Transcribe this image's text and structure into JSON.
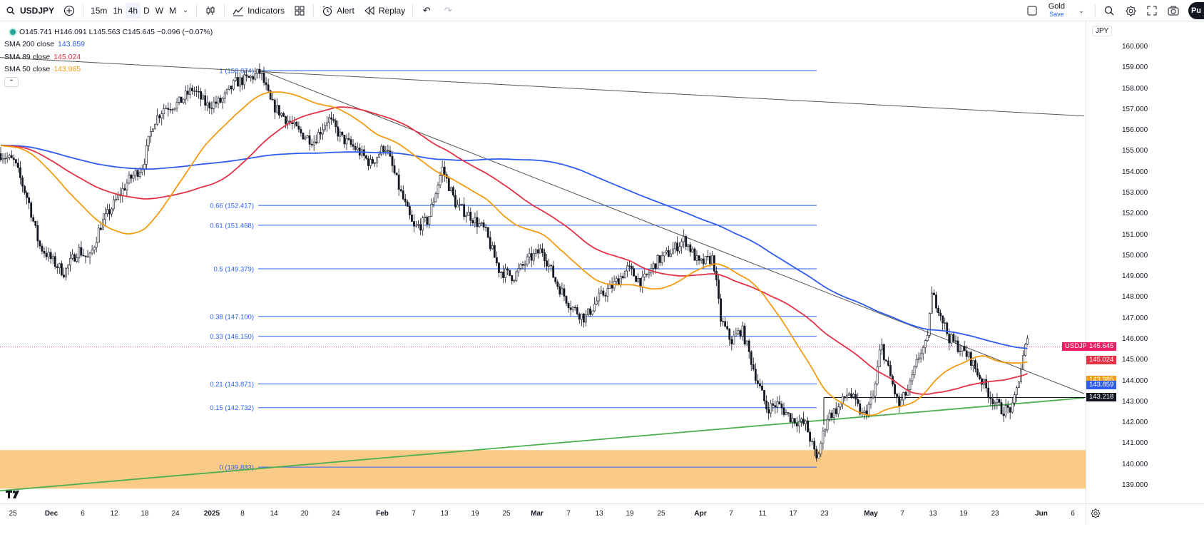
{
  "toolbar": {
    "symbol": "USDJPY",
    "timeframes": [
      "15m",
      "1h",
      "4h",
      "D",
      "W",
      "M"
    ],
    "active_timeframe": "4h",
    "indicators_label": "Indicators",
    "alert_label": "Alert",
    "replay_label": "Replay",
    "gold_label": "Gold",
    "gold_save": "Save",
    "publish_label": "Pu"
  },
  "legend": {
    "ohlc": {
      "open": "O145.741",
      "high": "H146.091",
      "low": "L145.563",
      "close": "C145.645",
      "change": "−0.096 (−0.07%)"
    },
    "sma200_label": "SMA 200 close",
    "sma200_value": "143.859",
    "sma89_label": "SMA 89 close",
    "sma89_value": "145.024",
    "sma50_label": "SMA 50 close",
    "sma50_value": "143.985"
  },
  "colors": {
    "sma200": "#2f5cf0",
    "sma89": "#e53146",
    "sma50": "#f39c12",
    "fib": "#2962ff",
    "support_zone": "#f9c57a",
    "uptrend": "#4caf50",
    "up_candle": "#131722",
    "down_candle": "#131722"
  },
  "price_axis": {
    "unit": "JPY",
    "ticks": [
      "160.000",
      "159.000",
      "158.000",
      "157.000",
      "156.000",
      "155.000",
      "154.000",
      "153.000",
      "152.000",
      "151.000",
      "150.000",
      "149.000",
      "148.000",
      "147.000",
      "146.000",
      "145.000",
      "144.000",
      "143.000",
      "142.000",
      "141.000",
      "140.000",
      "139.000"
    ],
    "tags": [
      {
        "label": "USDJPY",
        "value": "145.645",
        "color": "#e91e63"
      },
      {
        "value": "145.024",
        "color": "#e53146"
      },
      {
        "value": "143.985",
        "color": "#f39c12"
      },
      {
        "value": "143.859",
        "color": "#2f5cf0"
      },
      {
        "value": "143.218",
        "color": "#131722"
      }
    ]
  },
  "time_axis": {
    "ticks": [
      "25",
      "Dec",
      "6",
      "12",
      "18",
      "24",
      "2025",
      "8",
      "14",
      "20",
      "24",
      "Feb",
      "7",
      "13",
      "19",
      "25",
      "Mar",
      "7",
      "13",
      "19",
      "25",
      "Apr",
      "7",
      "11",
      "17",
      "23",
      "May",
      "7",
      "13",
      "19",
      "23",
      "Jun",
      "6"
    ]
  },
  "fib_levels": [
    {
      "label": "1 (158.874)",
      "price": 158.874
    },
    {
      "label": "0.66 (152.417)",
      "price": 152.417
    },
    {
      "label": "0.61 (151.468)",
      "price": 151.468
    },
    {
      "label": "0.5 (149.379)",
      "price": 149.379
    },
    {
      "label": "0.38 (147.100)",
      "price": 147.1
    },
    {
      "label": "0.33 (146.150)",
      "price": 146.15
    },
    {
      "label": "0.21 (143.871)",
      "price": 143.871
    },
    {
      "label": "0.15 (142.732)",
      "price": 142.732
    },
    {
      "label": "0 (139.883)",
      "price": 139.883
    }
  ],
  "chart_data": {
    "type": "candlestick",
    "symbol": "USDJPY",
    "ylim": [
      138.75,
      160.35
    ],
    "support_zone": [
      138.85,
      140.7
    ],
    "last_price": 145.645,
    "close_path": [
      [
        0,
        154.9
      ],
      [
        20,
        154.5
      ],
      [
        40,
        152.6
      ],
      [
        55,
        150.5
      ],
      [
        75,
        149.7
      ],
      [
        90,
        149.2
      ],
      [
        110,
        150.3
      ],
      [
        125,
        149.8
      ],
      [
        140,
        151.4
      ],
      [
        160,
        152.5
      ],
      [
        180,
        153.6
      ],
      [
        200,
        154.3
      ],
      [
        215,
        156.4
      ],
      [
        230,
        157.1
      ],
      [
        250,
        157.3
      ],
      [
        270,
        158.0
      ],
      [
        290,
        157.2
      ],
      [
        310,
        157.4
      ],
      [
        330,
        158.3
      ],
      [
        350,
        158.5
      ],
      [
        365,
        158.8
      ],
      [
        380,
        157.3
      ],
      [
        400,
        156.6
      ],
      [
        420,
        155.9
      ],
      [
        440,
        155.5
      ],
      [
        460,
        156.6
      ],
      [
        480,
        155.6
      ],
      [
        500,
        155.1
      ],
      [
        520,
        154.4
      ],
      [
        540,
        155.3
      ],
      [
        560,
        153.2
      ],
      [
        580,
        151.3
      ],
      [
        600,
        151.7
      ],
      [
        620,
        154.2
      ],
      [
        640,
        152.4
      ],
      [
        660,
        151.9
      ],
      [
        680,
        151.2
      ],
      [
        700,
        149.3
      ],
      [
        720,
        149.0
      ],
      [
        740,
        149.8
      ],
      [
        760,
        150.3
      ],
      [
        780,
        148.7
      ],
      [
        800,
        147.6
      ],
      [
        820,
        147.0
      ],
      [
        840,
        148.0
      ],
      [
        860,
        148.6
      ],
      [
        880,
        149.4
      ],
      [
        900,
        148.7
      ],
      [
        920,
        149.7
      ],
      [
        940,
        150.2
      ],
      [
        960,
        150.8
      ],
      [
        980,
        149.6
      ],
      [
        1000,
        149.9
      ],
      [
        1010,
        147.0
      ],
      [
        1025,
        145.9
      ],
      [
        1040,
        146.5
      ],
      [
        1060,
        144.2
      ],
      [
        1075,
        142.7
      ],
      [
        1090,
        142.9
      ],
      [
        1110,
        142.2
      ],
      [
        1130,
        141.9
      ],
      [
        1145,
        140.2
      ],
      [
        1160,
        142.3
      ],
      [
        1175,
        142.7
      ],
      [
        1190,
        143.5
      ],
      [
        1210,
        142.3
      ],
      [
        1225,
        143.3
      ],
      [
        1235,
        145.8
      ],
      [
        1245,
        144.6
      ],
      [
        1260,
        142.8
      ],
      [
        1275,
        143.7
      ],
      [
        1290,
        145.4
      ],
      [
        1300,
        145.8
      ],
      [
        1305,
        148.2
      ],
      [
        1315,
        147.6
      ],
      [
        1330,
        146.1
      ],
      [
        1345,
        145.6
      ],
      [
        1360,
        145.1
      ],
      [
        1375,
        144.1
      ],
      [
        1390,
        143.2
      ],
      [
        1405,
        142.6
      ],
      [
        1420,
        142.7
      ],
      [
        1430,
        144.4
      ],
      [
        1440,
        146.0
      ],
      [
        1442,
        145.6
      ]
    ],
    "trendlines": [
      {
        "name": "",
        "from": [
          0,
          159.5
        ],
        "to": [
          1520,
          156.7
        ],
        "color": "#555"
      },
      {
        "name": "",
        "from": [
          365,
          158.9
        ],
        "to": [
          1520,
          143.4
        ],
        "color": "#555"
      },
      {
        "name": "",
        "from": [
          0,
          138.75
        ],
        "to": [
          1520,
          143.2
        ],
        "color": "#4caf50"
      }
    ],
    "hline": {
      "price": 143.218,
      "from": 1155,
      "color": "#131722"
    }
  }
}
